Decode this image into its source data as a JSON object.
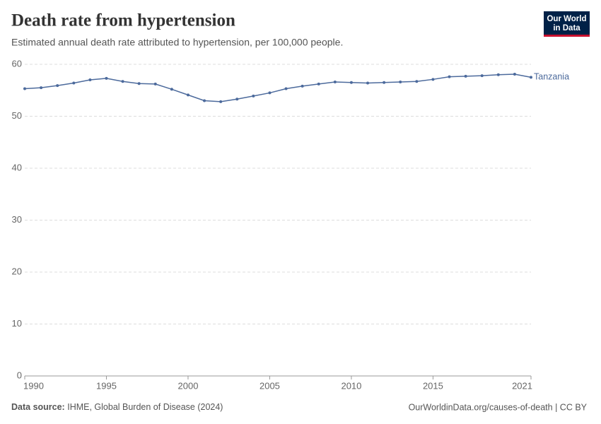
{
  "chart_data": {
    "type": "line",
    "title": "Death rate from hypertension",
    "subtitle": "Estimated annual death rate attributed to hypertension, per 100,000 people.",
    "x": [
      1990,
      1991,
      1992,
      1993,
      1994,
      1995,
      1996,
      1997,
      1998,
      1999,
      2000,
      2001,
      2002,
      2003,
      2004,
      2005,
      2006,
      2007,
      2008,
      2009,
      2010,
      2011,
      2012,
      2013,
      2014,
      2015,
      2016,
      2017,
      2018,
      2019,
      2020,
      2021
    ],
    "series": [
      {
        "name": "Tanzania",
        "color": "#4c6a9c",
        "values": [
          55.3,
          55.5,
          55.9,
          56.4,
          57.0,
          57.3,
          56.7,
          56.3,
          56.2,
          55.2,
          54.1,
          53.0,
          52.8,
          53.3,
          53.9,
          54.5,
          55.3,
          55.8,
          56.2,
          56.6,
          56.5,
          56.4,
          56.5,
          56.6,
          56.7,
          57.1,
          57.6,
          57.7,
          57.8,
          58.0,
          58.1,
          57.5
        ]
      }
    ],
    "xlim": [
      1990,
      2021
    ],
    "xticks": [
      1990,
      1995,
      2000,
      2005,
      2010,
      2015,
      2021
    ],
    "ylim": [
      0,
      60
    ],
    "yticks": [
      0,
      10,
      20,
      30,
      40,
      50,
      60
    ],
    "grid": true,
    "source_label": "Data source:",
    "source": "IHME, Global Burden of Disease (2024)",
    "credit": "OurWorldinData.org/causes-of-death | CC BY",
    "logo": [
      "Our World",
      "in Data"
    ]
  }
}
